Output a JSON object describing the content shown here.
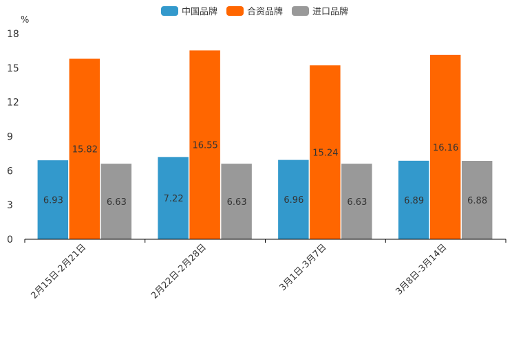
{
  "chart_data": {
    "type": "bar",
    "title": "",
    "unit_label": "%",
    "xlabel": "",
    "ylabel": "%",
    "ylim": [
      0,
      18
    ],
    "yticks": [
      0,
      3,
      6,
      9,
      12,
      15,
      18
    ],
    "grid": false,
    "legend_position": "top-center",
    "categories": [
      "2月15日-2月21日",
      "2月22日-2月28日",
      "3月1日-3月7日",
      "3月8日-3月14日"
    ],
    "series": [
      {
        "name": "中国品牌",
        "color": "#3399CC",
        "values": [
          6.93,
          7.22,
          6.96,
          6.89
        ]
      },
      {
        "name": "合资品牌",
        "color": "#FF6600",
        "values": [
          15.82,
          16.55,
          15.24,
          16.16
        ]
      },
      {
        "name": "进口品牌",
        "color": "#999999",
        "values": [
          6.63,
          6.63,
          6.63,
          6.88
        ]
      }
    ]
  }
}
